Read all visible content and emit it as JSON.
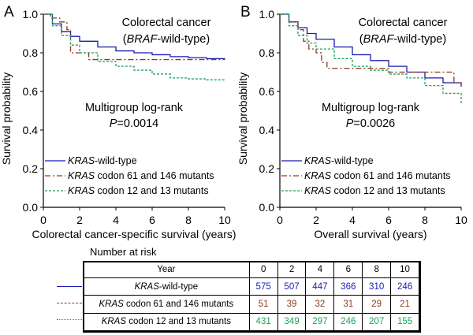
{
  "colors": {
    "wild": "#1a1ab4",
    "c61": "#8b3a1e",
    "c12": "#1aa35a"
  },
  "chart_data": [
    {
      "type": "line",
      "panel_label": "A",
      "title_line1": "Colorectal cancer",
      "title_line2_italic": "BRAF",
      "title_line2_rest": "-wild-type",
      "test_label": "Multigroup log-rank",
      "p_italic": "P",
      "p_value": "=0.0014",
      "xlabel": "Colorectal cancer-specific survival (years)",
      "ylabel": "Survival probability",
      "xlim": [
        0,
        10
      ],
      "ylim": [
        0,
        1
      ],
      "xticks": [
        "0",
        "2",
        "4",
        "6",
        "8",
        "10"
      ],
      "yticks": [
        "0.0",
        "0.2",
        "0.4",
        "0.6",
        "0.8",
        "1.0"
      ],
      "legend_position": "bottom-left",
      "series": [
        {
          "name": "KRAS-wild-type",
          "key": "wild",
          "x": [
            0,
            0.5,
            1,
            1.5,
            2,
            3,
            4,
            5,
            6,
            7,
            8,
            9,
            10
          ],
          "y": [
            1.0,
            0.95,
            0.91,
            0.885,
            0.86,
            0.83,
            0.81,
            0.8,
            0.79,
            0.78,
            0.775,
            0.77,
            0.765
          ]
        },
        {
          "name": "KRAS codon 61 and 146 mutants",
          "key": "c61",
          "x": [
            0,
            0.4,
            0.9,
            1.3,
            1.5,
            2.2,
            2.5,
            6.0,
            9.5,
            10
          ],
          "y": [
            1.0,
            0.98,
            0.96,
            0.92,
            0.8,
            0.8,
            0.765,
            0.765,
            0.765,
            0.765
          ]
        },
        {
          "name": "KRAS codon 12 and 13 mutants",
          "key": "c12",
          "x": [
            0,
            0.5,
            1,
            1.5,
            2,
            3,
            4,
            5,
            6,
            7,
            8,
            9,
            10
          ],
          "y": [
            1.0,
            0.94,
            0.89,
            0.84,
            0.8,
            0.755,
            0.73,
            0.71,
            0.69,
            0.67,
            0.665,
            0.66,
            0.655
          ]
        }
      ]
    },
    {
      "type": "line",
      "panel_label": "B",
      "title_line1": "Colorectal cancer",
      "title_line2_italic": "BRAF",
      "title_line2_rest": "-wild-type",
      "test_label": "Multigroup log-rank",
      "p_italic": "P",
      "p_value": "=0.0026",
      "xlabel": "Overall survival (years)",
      "ylabel": "Survival probability",
      "xlim": [
        0,
        10
      ],
      "ylim": [
        0,
        1
      ],
      "xticks": [
        "0",
        "2",
        "4",
        "6",
        "8",
        "10"
      ],
      "yticks": [
        "0.0",
        "0.2",
        "0.4",
        "0.6",
        "0.8",
        "1.0"
      ],
      "legend_position": "bottom-left",
      "series": [
        {
          "name": "KRAS-wild-type",
          "key": "wild",
          "x": [
            0,
            0.5,
            1,
            1.5,
            2,
            3,
            4,
            5,
            6,
            7,
            8,
            9,
            10
          ],
          "y": [
            1.0,
            0.96,
            0.93,
            0.9,
            0.87,
            0.83,
            0.79,
            0.76,
            0.73,
            0.7,
            0.67,
            0.645,
            0.625
          ]
        },
        {
          "name": "KRAS codon 61 and 146 mutants",
          "key": "c61",
          "x": [
            0,
            0.5,
            1,
            1.3,
            1.6,
            2.0,
            2.3,
            2.6,
            3.0,
            6.0,
            9.5,
            9.6,
            10
          ],
          "y": [
            1.0,
            0.96,
            0.92,
            0.86,
            0.82,
            0.8,
            0.75,
            0.72,
            0.72,
            0.7,
            0.7,
            0.645,
            0.645
          ]
        },
        {
          "name": "KRAS codon 12 and 13 mutants",
          "key": "c12",
          "x": [
            0,
            0.5,
            1,
            1.5,
            2,
            3,
            4,
            5,
            6,
            7,
            8,
            9,
            10
          ],
          "y": [
            1.0,
            0.94,
            0.89,
            0.85,
            0.82,
            0.77,
            0.73,
            0.71,
            0.69,
            0.67,
            0.63,
            0.59,
            0.54
          ]
        }
      ]
    }
  ],
  "risk_table": {
    "title": "Number at risk",
    "header_label": "Year",
    "years": [
      "0",
      "2",
      "4",
      "6",
      "8",
      "10"
    ],
    "rows": [
      {
        "italic": "KRAS",
        "rest": "-wild-type",
        "key": "wild",
        "values": [
          "575",
          "507",
          "447",
          "366",
          "310",
          "246"
        ]
      },
      {
        "italic": "KRAS",
        "rest": " codon 61 and 146 mutants",
        "key": "c61",
        "values": [
          "51",
          "39",
          "32",
          "31",
          "29",
          "21"
        ]
      },
      {
        "italic": "KRAS",
        "rest": " codon 12 and 13 mutants",
        "key": "c12",
        "values": [
          "431",
          "349",
          "297",
          "246",
          "207",
          "155"
        ]
      }
    ]
  }
}
